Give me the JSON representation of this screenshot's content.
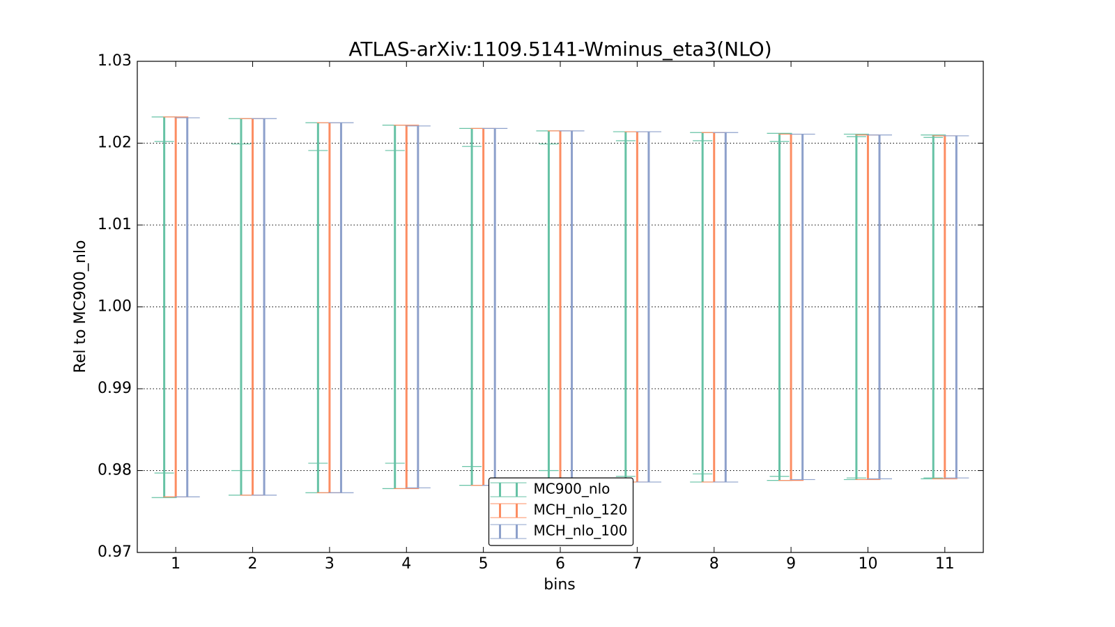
{
  "chart_data": {
    "type": "errorbar",
    "title": "ATLAS-arXiv:1109.5141-Wminus_eta3(NLO)",
    "xlabel": "bins",
    "ylabel": "Rel to MC900_nlo",
    "x": [
      1,
      2,
      3,
      4,
      5,
      6,
      7,
      8,
      9,
      10,
      11
    ],
    "xlim": [
      0.5,
      11.5
    ],
    "xticks": [
      1,
      2,
      3,
      4,
      5,
      6,
      7,
      8,
      9,
      10,
      11
    ],
    "ylim": [
      0.97,
      1.03
    ],
    "yticks": [
      0.97,
      0.98,
      0.99,
      {
        "value": 1,
        "label": "1.00"
      },
      1.01,
      1.02,
      1.03
    ],
    "grid": true,
    "legend": "lower center",
    "series": [
      {
        "name": "MC900_nlo",
        "color": "#66c2a5",
        "high": [
          1.0232,
          1.023,
          1.0225,
          1.0222,
          1.0218,
          1.0215,
          1.0214,
          1.0213,
          1.0212,
          1.0211,
          1.021
        ],
        "low": [
          0.9767,
          0.977,
          0.9773,
          0.9778,
          0.9782,
          0.9784,
          0.9786,
          0.9786,
          0.9788,
          0.9789,
          0.979
        ],
        "inner_high": [
          1.0202,
          1.0199,
          1.0191,
          1.0191,
          1.0196,
          1.0199,
          1.0203,
          1.0203,
          1.0202,
          1.0208,
          1.0207
        ],
        "inner_low": [
          0.9797,
          0.98,
          0.9809,
          0.9809,
          0.9805,
          0.98,
          0.9793,
          0.9796,
          0.9793,
          0.9791,
          0.9791
        ]
      },
      {
        "name": "MCH_nlo_120",
        "color": "#fc8d62",
        "high": [
          1.0232,
          1.023,
          1.0225,
          1.0222,
          1.0218,
          1.0215,
          1.0214,
          1.0213,
          1.0211,
          1.021,
          1.0209
        ],
        "low": [
          0.9768,
          0.977,
          0.9773,
          0.9778,
          0.9782,
          0.9784,
          0.9786,
          0.9786,
          0.9788,
          0.9789,
          0.979
        ]
      },
      {
        "name": "MCH_nlo_100",
        "color": "#8da0cb",
        "high": [
          1.0231,
          1.023,
          1.0225,
          1.0221,
          1.0218,
          1.0215,
          1.0214,
          1.0213,
          1.0211,
          1.021,
          1.0209
        ],
        "low": [
          0.9768,
          0.977,
          0.9773,
          0.9779,
          0.9782,
          0.9785,
          0.9786,
          0.9786,
          0.9789,
          0.979,
          0.9791
        ]
      }
    ]
  }
}
